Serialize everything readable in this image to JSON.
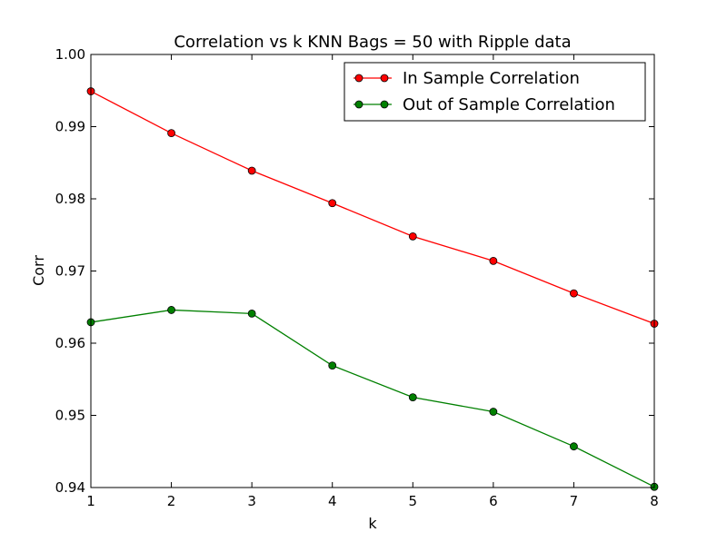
{
  "chart_data": {
    "type": "line",
    "title": "Correlation vs k KNN Bags = 50 with Ripple data",
    "xlabel": "k",
    "ylabel": "Corr",
    "xlim": [
      1,
      8
    ],
    "ylim": [
      0.94,
      1.0
    ],
    "x_ticks": [
      "1",
      "2",
      "3",
      "4",
      "5",
      "6",
      "7",
      "8"
    ],
    "y_ticks": [
      "0.94",
      "0.95",
      "0.96",
      "0.97",
      "0.98",
      "0.99",
      "1.00"
    ],
    "grid": false,
    "legend_position": "top-right",
    "x": [
      1,
      2,
      3,
      4,
      5,
      6,
      7,
      8
    ],
    "series": [
      {
        "name": "In Sample Correlation",
        "color": "#ff0000",
        "values": [
          0.9949,
          0.9891,
          0.9839,
          0.9794,
          0.9748,
          0.9714,
          0.9669,
          0.9627
        ]
      },
      {
        "name": "Out of Sample Correlation",
        "color": "#008000",
        "values": [
          0.9629,
          0.9646,
          0.9641,
          0.9569,
          0.9525,
          0.9505,
          0.9457,
          0.9401
        ]
      }
    ]
  }
}
